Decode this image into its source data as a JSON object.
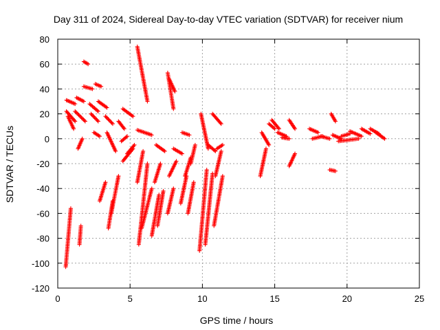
{
  "chart_data": {
    "type": "scatter",
    "title": "Day 311 of 2024, Sidereal Day-to-day VTEC variation (SDTVAR) for receiver nium",
    "xlabel": "GPS time / hours",
    "ylabel": "SDTVAR / TECUs",
    "xlim": [
      0,
      25
    ],
    "ylim": [
      -120,
      80
    ],
    "xticks": [
      "0",
      "5",
      "10",
      "15",
      "20",
      "25"
    ],
    "yticks": [
      "-120",
      "-100",
      "-80",
      "-60",
      "-40",
      "-20",
      "0",
      "20",
      "40",
      "60",
      "80"
    ],
    "grid": true,
    "marker": "+",
    "color": "#ff0000",
    "tracks": [
      {
        "x": [
          0.55,
          0.9
        ],
        "y": [
          -103,
          -56
        ]
      },
      {
        "x": [
          0.6,
          1.2
        ],
        "y": [
          31,
          28
        ]
      },
      {
        "x": [
          0.6,
          1.2
        ],
        "y": [
          22,
          14
        ]
      },
      {
        "x": [
          0.7,
          1.1
        ],
        "y": [
          18,
          8
        ]
      },
      {
        "x": [
          1.4,
          1.7
        ],
        "y": [
          -8,
          0
        ]
      },
      {
        "x": [
          1.3,
          1.8
        ],
        "y": [
          33,
          30
        ]
      },
      {
        "x": [
          1.2,
          1.9
        ],
        "y": [
          22,
          14
        ]
      },
      {
        "x": [
          1.5,
          1.6
        ],
        "y": [
          -85,
          -70
        ]
      },
      {
        "x": [
          1.8,
          2.1
        ],
        "y": [
          62,
          60
        ]
      },
      {
        "x": [
          1.8,
          2.4
        ],
        "y": [
          42,
          40
        ]
      },
      {
        "x": [
          2.2,
          2.8
        ],
        "y": [
          28,
          22
        ]
      },
      {
        "x": [
          2.3,
          2.8
        ],
        "y": [
          20,
          14
        ]
      },
      {
        "x": [
          2.5,
          2.9
        ],
        "y": [
          5,
          2
        ]
      },
      {
        "x": [
          2.6,
          3.0
        ],
        "y": [
          44,
          42
        ]
      },
      {
        "x": [
          2.8,
          3.4
        ],
        "y": [
          30,
          25
        ]
      },
      {
        "x": [
          2.9,
          3.3
        ],
        "y": [
          -50,
          -35
        ]
      },
      {
        "x": [
          3.3,
          3.8
        ],
        "y": [
          18,
          12
        ]
      },
      {
        "x": [
          3.5,
          3.8
        ],
        "y": [
          -72,
          -50
        ]
      },
      {
        "x": [
          3.7,
          4.2
        ],
        "y": [
          -60,
          -30
        ]
      },
      {
        "x": [
          3.4,
          4.0
        ],
        "y": [
          5,
          -10
        ]
      },
      {
        "x": [
          4.2,
          4.6
        ],
        "y": [
          14,
          8
        ]
      },
      {
        "x": [
          4.4,
          4.8
        ],
        "y": [
          -2,
          2
        ]
      },
      {
        "x": [
          4.5,
          5.2
        ],
        "y": [
          24,
          18
        ]
      },
      {
        "x": [
          4.5,
          5.2
        ],
        "y": [
          -18,
          -8
        ]
      },
      {
        "x": [
          4.8,
          5.3
        ],
        "y": [
          -12,
          -5
        ]
      },
      {
        "x": [
          5.5,
          6.2
        ],
        "y": [
          74,
          30
        ]
      },
      {
        "x": [
          5.5,
          5.9
        ],
        "y": [
          -35,
          -10
        ]
      },
      {
        "x": [
          5.6,
          6.2
        ],
        "y": [
          -85,
          -20
        ]
      },
      {
        "x": [
          5.8,
          6.5
        ],
        "y": [
          -72,
          -40
        ]
      },
      {
        "x": [
          5.5,
          6.5
        ],
        "y": [
          7,
          3
        ]
      },
      {
        "x": [
          6.5,
          7.0
        ],
        "y": [
          -78,
          -45
        ]
      },
      {
        "x": [
          6.7,
          7.1
        ],
        "y": [
          -35,
          -20
        ]
      },
      {
        "x": [
          6.9,
          7.3
        ],
        "y": [
          -70,
          -42
        ]
      },
      {
        "x": [
          6.8,
          7.4
        ],
        "y": [
          -5,
          -10
        ]
      },
      {
        "x": [
          7.6,
          8.0
        ],
        "y": [
          -60,
          -40
        ]
      },
      {
        "x": [
          7.7,
          8.2
        ],
        "y": [
          -30,
          -18
        ]
      },
      {
        "x": [
          7.6,
          8.0
        ],
        "y": [
          53,
          24
        ]
      },
      {
        "x": [
          7.7,
          8.1
        ],
        "y": [
          48,
          38
        ]
      },
      {
        "x": [
          8.0,
          8.6
        ],
        "y": [
          -8,
          -12
        ]
      },
      {
        "x": [
          8.5,
          8.9
        ],
        "y": [
          -52,
          -30
        ]
      },
      {
        "x": [
          8.6,
          9.1
        ],
        "y": [
          5,
          3
        ]
      },
      {
        "x": [
          8.8,
          9.2
        ],
        "y": [
          -30,
          -15
        ]
      },
      {
        "x": [
          9.0,
          9.4
        ],
        "y": [
          -60,
          -35
        ]
      },
      {
        "x": [
          9.2,
          9.5
        ],
        "y": [
          -20,
          -5
        ]
      },
      {
        "x": [
          9.8,
          10.3
        ],
        "y": [
          -90,
          -25
        ]
      },
      {
        "x": [
          9.9,
          10.4
        ],
        "y": [
          20,
          -8
        ]
      },
      {
        "x": [
          10.2,
          10.7
        ],
        "y": [
          -85,
          -28
        ]
      },
      {
        "x": [
          10.4,
          10.9
        ],
        "y": [
          -5,
          -10
        ]
      },
      {
        "x": [
          10.7,
          11.3
        ],
        "y": [
          20,
          12
        ]
      },
      {
        "x": [
          10.8,
          11.4
        ],
        "y": [
          -70,
          -30
        ]
      },
      {
        "x": [
          10.9,
          11.3
        ],
        "y": [
          -30,
          -10
        ]
      },
      {
        "x": [
          11.0,
          11.4
        ],
        "y": [
          -8,
          -5
        ]
      },
      {
        "x": [
          14.0,
          14.4
        ],
        "y": [
          -30,
          -8
        ]
      },
      {
        "x": [
          14.1,
          14.6
        ],
        "y": [
          5,
          -5
        ]
      },
      {
        "x": [
          14.6,
          15.0
        ],
        "y": [
          12,
          8
        ]
      },
      {
        "x": [
          14.8,
          15.3
        ],
        "y": [
          15,
          8
        ]
      },
      {
        "x": [
          15.2,
          15.8
        ],
        "y": [
          5,
          2
        ]
      },
      {
        "x": [
          15.5,
          16.0
        ],
        "y": [
          1,
          0
        ]
      },
      {
        "x": [
          16.0,
          16.4
        ],
        "y": [
          -22,
          -12
        ]
      },
      {
        "x": [
          16.0,
          16.4
        ],
        "y": [
          15,
          8
        ]
      },
      {
        "x": [
          17.4,
          18.0
        ],
        "y": [
          8,
          5
        ]
      },
      {
        "x": [
          17.6,
          18.3
        ],
        "y": [
          0,
          2
        ]
      },
      {
        "x": [
          18.2,
          18.8
        ],
        "y": [
          2,
          0
        ]
      },
      {
        "x": [
          18.9,
          19.2
        ],
        "y": [
          20,
          14
        ]
      },
      {
        "x": [
          18.8,
          19.2
        ],
        "y": [
          -25,
          -26
        ]
      },
      {
        "x": [
          19.0,
          19.6
        ],
        "y": [
          3,
          0
        ]
      },
      {
        "x": [
          19.6,
          20.2
        ],
        "y": [
          2,
          4
        ]
      },
      {
        "x": [
          20.2,
          21.0
        ],
        "y": [
          6,
          2
        ]
      },
      {
        "x": [
          21.0,
          21.6
        ],
        "y": [
          8,
          4
        ]
      },
      {
        "x": [
          21.6,
          22.2
        ],
        "y": [
          8,
          4
        ]
      },
      {
        "x": [
          22.0,
          22.6
        ],
        "y": [
          5,
          0
        ]
      },
      {
        "x": [
          19.4,
          20.8
        ],
        "y": [
          -2,
          0
        ]
      }
    ]
  }
}
